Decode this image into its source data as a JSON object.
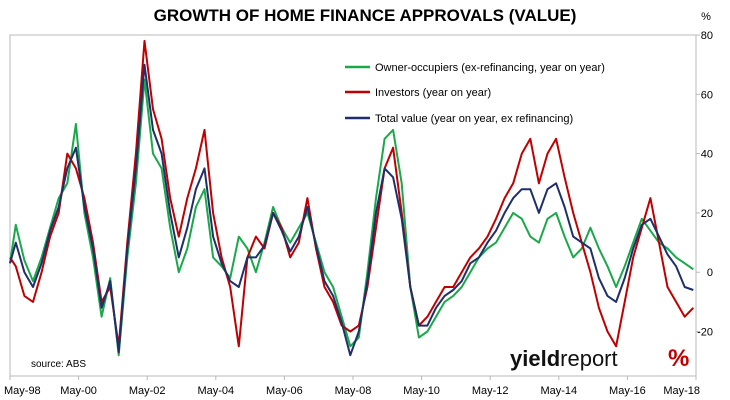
{
  "chart_data": {
    "type": "line",
    "title": "GROWTH OF HOME FINANCE APPROVALS (VALUE)",
    "ylabel": "%",
    "ylim": [
      -35,
      80
    ],
    "yticks": [
      -20,
      0,
      20,
      40,
      60,
      80
    ],
    "xlim": [
      1998.33,
      2018.33
    ],
    "xticks": [
      {
        "label": "May-98",
        "x": 1998.33
      },
      {
        "label": "May-00",
        "x": 2000.33
      },
      {
        "label": "May-02",
        "x": 2002.33
      },
      {
        "label": "May-04",
        "x": 2004.33
      },
      {
        "label": "May-06",
        "x": 2006.33
      },
      {
        "label": "May-08",
        "x": 2008.33
      },
      {
        "label": "May-10",
        "x": 2010.33
      },
      {
        "label": "May-12",
        "x": 2012.33
      },
      {
        "label": "May-14",
        "x": 2014.33
      },
      {
        "label": "May-16",
        "x": 2016.33
      },
      {
        "label": "May-18",
        "x": 2018.33
      }
    ],
    "grid": false,
    "legend_position": "top-right",
    "source": "source: ABS",
    "series": [
      {
        "name": "Owner-occupiers (ex-refinancing, year on year)",
        "color": "#1aa84a",
        "points": [
          [
            1998.33,
            3
          ],
          [
            1998.5,
            16
          ],
          [
            1998.75,
            4
          ],
          [
            1999.0,
            -3
          ],
          [
            1999.25,
            5
          ],
          [
            1999.5,
            15
          ],
          [
            1999.75,
            25
          ],
          [
            2000.0,
            30
          ],
          [
            2000.25,
            50
          ],
          [
            2000.5,
            20
          ],
          [
            2000.75,
            5
          ],
          [
            2001.0,
            -15
          ],
          [
            2001.25,
            -2
          ],
          [
            2001.5,
            -28
          ],
          [
            2001.75,
            5
          ],
          [
            2002.0,
            30
          ],
          [
            2002.25,
            65
          ],
          [
            2002.5,
            40
          ],
          [
            2002.75,
            35
          ],
          [
            2003.0,
            15
          ],
          [
            2003.25,
            0
          ],
          [
            2003.5,
            8
          ],
          [
            2003.75,
            22
          ],
          [
            2004.0,
            28
          ],
          [
            2004.25,
            5
          ],
          [
            2004.5,
            2
          ],
          [
            2004.75,
            -2
          ],
          [
            2005.0,
            12
          ],
          [
            2005.25,
            8
          ],
          [
            2005.5,
            0
          ],
          [
            2005.75,
            10
          ],
          [
            2006.0,
            22
          ],
          [
            2006.25,
            15
          ],
          [
            2006.5,
            10
          ],
          [
            2006.75,
            15
          ],
          [
            2007.0,
            20
          ],
          [
            2007.25,
            10
          ],
          [
            2007.5,
            0
          ],
          [
            2007.75,
            -5
          ],
          [
            2008.0,
            -15
          ],
          [
            2008.25,
            -25
          ],
          [
            2008.5,
            -22
          ],
          [
            2008.75,
            0
          ],
          [
            2009.0,
            25
          ],
          [
            2009.25,
            45
          ],
          [
            2009.5,
            48
          ],
          [
            2009.75,
            30
          ],
          [
            2010.0,
            -5
          ],
          [
            2010.25,
            -22
          ],
          [
            2010.5,
            -20
          ],
          [
            2010.75,
            -15
          ],
          [
            2011.0,
            -10
          ],
          [
            2011.25,
            -8
          ],
          [
            2011.5,
            -5
          ],
          [
            2011.75,
            0
          ],
          [
            2012.0,
            5
          ],
          [
            2012.25,
            8
          ],
          [
            2012.5,
            10
          ],
          [
            2012.75,
            15
          ],
          [
            2013.0,
            20
          ],
          [
            2013.25,
            18
          ],
          [
            2013.5,
            12
          ],
          [
            2013.75,
            10
          ],
          [
            2014.0,
            18
          ],
          [
            2014.25,
            20
          ],
          [
            2014.5,
            12
          ],
          [
            2014.75,
            5
          ],
          [
            2015.0,
            8
          ],
          [
            2015.25,
            15
          ],
          [
            2015.5,
            8
          ],
          [
            2015.75,
            2
          ],
          [
            2016.0,
            -5
          ],
          [
            2016.25,
            2
          ],
          [
            2016.5,
            10
          ],
          [
            2016.75,
            18
          ],
          [
            2017.0,
            14
          ],
          [
            2017.25,
            10
          ],
          [
            2017.5,
            8
          ],
          [
            2017.75,
            5
          ],
          [
            2018.0,
            3
          ],
          [
            2018.25,
            1
          ]
        ]
      },
      {
        "name": "Investors (year on year)",
        "color": "#c00000",
        "points": [
          [
            1998.33,
            5
          ],
          [
            1998.5,
            2
          ],
          [
            1998.75,
            -8
          ],
          [
            1999.0,
            -10
          ],
          [
            1999.25,
            0
          ],
          [
            1999.5,
            12
          ],
          [
            1999.75,
            20
          ],
          [
            2000.0,
            40
          ],
          [
            2000.25,
            35
          ],
          [
            2000.5,
            25
          ],
          [
            2000.75,
            10
          ],
          [
            2001.0,
            -10
          ],
          [
            2001.25,
            -5
          ],
          [
            2001.5,
            -25
          ],
          [
            2001.75,
            10
          ],
          [
            2002.0,
            40
          ],
          [
            2002.25,
            78
          ],
          [
            2002.5,
            55
          ],
          [
            2002.75,
            45
          ],
          [
            2003.0,
            25
          ],
          [
            2003.25,
            12
          ],
          [
            2003.5,
            25
          ],
          [
            2003.75,
            35
          ],
          [
            2004.0,
            48
          ],
          [
            2004.25,
            20
          ],
          [
            2004.5,
            5
          ],
          [
            2004.75,
            -5
          ],
          [
            2005.0,
            -25
          ],
          [
            2005.25,
            5
          ],
          [
            2005.5,
            12
          ],
          [
            2005.75,
            8
          ],
          [
            2006.0,
            20
          ],
          [
            2006.25,
            15
          ],
          [
            2006.5,
            5
          ],
          [
            2006.75,
            10
          ],
          [
            2007.0,
            25
          ],
          [
            2007.25,
            8
          ],
          [
            2007.5,
            -5
          ],
          [
            2007.75,
            -10
          ],
          [
            2008.0,
            -18
          ],
          [
            2008.25,
            -20
          ],
          [
            2008.5,
            -18
          ],
          [
            2008.75,
            -5
          ],
          [
            2009.0,
            15
          ],
          [
            2009.25,
            35
          ],
          [
            2009.5,
            42
          ],
          [
            2009.75,
            20
          ],
          [
            2010.0,
            -5
          ],
          [
            2010.25,
            -18
          ],
          [
            2010.5,
            -15
          ],
          [
            2010.75,
            -10
          ],
          [
            2011.0,
            -5
          ],
          [
            2011.25,
            -5
          ],
          [
            2011.5,
            0
          ],
          [
            2011.75,
            5
          ],
          [
            2012.0,
            8
          ],
          [
            2012.25,
            12
          ],
          [
            2012.5,
            18
          ],
          [
            2012.75,
            25
          ],
          [
            2013.0,
            30
          ],
          [
            2013.25,
            40
          ],
          [
            2013.5,
            45
          ],
          [
            2013.75,
            30
          ],
          [
            2014.0,
            40
          ],
          [
            2014.25,
            45
          ],
          [
            2014.5,
            32
          ],
          [
            2014.75,
            20
          ],
          [
            2015.0,
            10
          ],
          [
            2015.25,
            0
          ],
          [
            2015.5,
            -12
          ],
          [
            2015.75,
            -20
          ],
          [
            2016.0,
            -25
          ],
          [
            2016.25,
            -10
          ],
          [
            2016.5,
            5
          ],
          [
            2016.75,
            15
          ],
          [
            2017.0,
            25
          ],
          [
            2017.25,
            10
          ],
          [
            2017.5,
            -5
          ],
          [
            2017.75,
            -10
          ],
          [
            2018.0,
            -15
          ],
          [
            2018.25,
            -12
          ]
        ]
      },
      {
        "name": "Total value (year on year, ex refinancing)",
        "color": "#1f2f6b",
        "points": [
          [
            1998.33,
            3
          ],
          [
            1998.5,
            10
          ],
          [
            1998.75,
            0
          ],
          [
            1999.0,
            -5
          ],
          [
            1999.25,
            3
          ],
          [
            1999.5,
            14
          ],
          [
            1999.75,
            22
          ],
          [
            2000.0,
            35
          ],
          [
            2000.25,
            42
          ],
          [
            2000.5,
            22
          ],
          [
            2000.75,
            8
          ],
          [
            2001.0,
            -12
          ],
          [
            2001.25,
            -3
          ],
          [
            2001.5,
            -27
          ],
          [
            2001.75,
            8
          ],
          [
            2002.0,
            35
          ],
          [
            2002.25,
            70
          ],
          [
            2002.5,
            48
          ],
          [
            2002.75,
            40
          ],
          [
            2003.0,
            20
          ],
          [
            2003.25,
            5
          ],
          [
            2003.5,
            15
          ],
          [
            2003.75,
            28
          ],
          [
            2004.0,
            35
          ],
          [
            2004.25,
            12
          ],
          [
            2004.5,
            3
          ],
          [
            2004.75,
            -3
          ],
          [
            2005.0,
            -5
          ],
          [
            2005.25,
            5
          ],
          [
            2005.5,
            5
          ],
          [
            2005.75,
            9
          ],
          [
            2006.0,
            20
          ],
          [
            2006.25,
            14
          ],
          [
            2006.5,
            7
          ],
          [
            2006.75,
            12
          ],
          [
            2007.0,
            22
          ],
          [
            2007.25,
            9
          ],
          [
            2007.5,
            -3
          ],
          [
            2007.75,
            -8
          ],
          [
            2008.0,
            -17
          ],
          [
            2008.25,
            -28
          ],
          [
            2008.5,
            -20
          ],
          [
            2008.75,
            -3
          ],
          [
            2009.0,
            20
          ],
          [
            2009.25,
            35
          ],
          [
            2009.5,
            32
          ],
          [
            2009.75,
            18
          ],
          [
            2010.0,
            -5
          ],
          [
            2010.25,
            -18
          ],
          [
            2010.5,
            -18
          ],
          [
            2010.75,
            -12
          ],
          [
            2011.0,
            -8
          ],
          [
            2011.25,
            -6
          ],
          [
            2011.5,
            -3
          ],
          [
            2011.75,
            3
          ],
          [
            2012.0,
            5
          ],
          [
            2012.25,
            10
          ],
          [
            2012.5,
            14
          ],
          [
            2012.75,
            20
          ],
          [
            2013.0,
            25
          ],
          [
            2013.25,
            28
          ],
          [
            2013.5,
            28
          ],
          [
            2013.75,
            20
          ],
          [
            2014.0,
            28
          ],
          [
            2014.25,
            30
          ],
          [
            2014.5,
            22
          ],
          [
            2014.75,
            12
          ],
          [
            2015.0,
            10
          ],
          [
            2015.25,
            8
          ],
          [
            2015.5,
            -2
          ],
          [
            2015.75,
            -8
          ],
          [
            2016.0,
            -10
          ],
          [
            2016.25,
            -2
          ],
          [
            2016.5,
            8
          ],
          [
            2016.75,
            16
          ],
          [
            2017.0,
            18
          ],
          [
            2017.25,
            12
          ],
          [
            2017.5,
            6
          ],
          [
            2017.75,
            2
          ],
          [
            2018.0,
            -5
          ],
          [
            2018.25,
            -6
          ]
        ]
      }
    ]
  },
  "branding": {
    "part1": "yield",
    "part2": "report",
    "pct": "%"
  }
}
